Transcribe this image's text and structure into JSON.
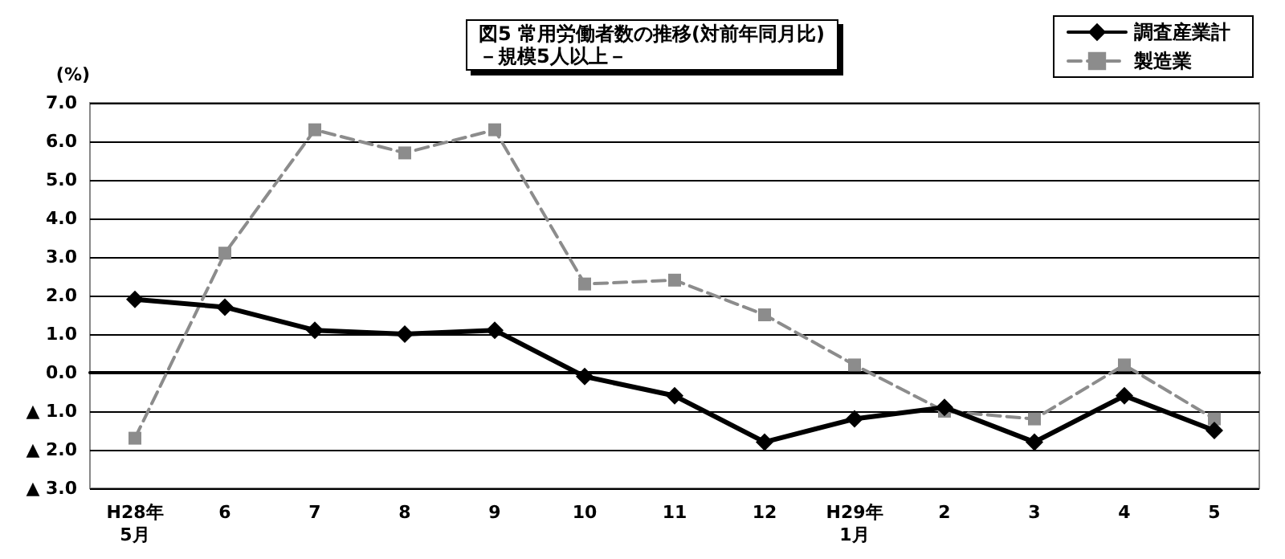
{
  "chart_data": {
    "type": "line",
    "title": "図5 常用労働者数の推移(対前年同月比)",
    "subtitle": "－規模5人以上－",
    "ylabel": "(%)",
    "categories": [
      "H28年\n5月",
      "6",
      "7",
      "8",
      "9",
      "10",
      "11",
      "12",
      "H29年\n1月",
      "2",
      "3",
      "4",
      "5"
    ],
    "series": [
      {
        "name": "調査産業計",
        "color": "#000000",
        "marker": "diamond",
        "line_style": "solid",
        "values": [
          1.9,
          1.7,
          1.1,
          1.0,
          1.1,
          -0.1,
          -0.6,
          -1.8,
          -1.2,
          -0.9,
          -1.8,
          -0.6,
          -1.5
        ]
      },
      {
        "name": "製造業",
        "color": "#8c8c8c",
        "marker": "square",
        "line_style": "dashed",
        "values": [
          -1.7,
          3.1,
          6.3,
          5.7,
          6.3,
          2.3,
          2.4,
          1.5,
          0.2,
          -1.0,
          -1.2,
          0.2,
          -1.2
        ]
      }
    ],
    "ylim": [
      -3,
      7
    ],
    "yticks": [
      {
        "value": 7,
        "label": "7.0"
      },
      {
        "value": 6,
        "label": "6.0"
      },
      {
        "value": 5,
        "label": "5.0"
      },
      {
        "value": 4,
        "label": "4.0"
      },
      {
        "value": 3,
        "label": "3.0"
      },
      {
        "value": 2,
        "label": "2.0"
      },
      {
        "value": 1,
        "label": "1.0"
      },
      {
        "value": 0,
        "label": "0.0"
      },
      {
        "value": -1,
        "label": "▲ 1.0"
      },
      {
        "value": -2,
        "label": "▲ 2.0"
      },
      {
        "value": -3,
        "label": "▲ 3.0"
      }
    ],
    "grid": "y",
    "legend": "top right"
  }
}
